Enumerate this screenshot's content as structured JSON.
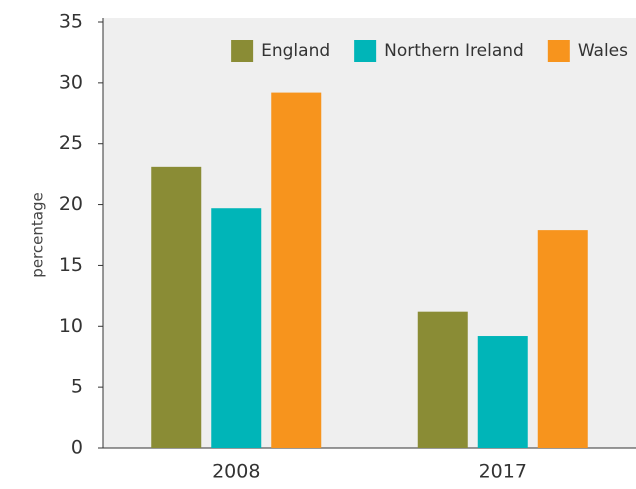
{
  "chart_data": {
    "type": "bar",
    "y_label": "percentage",
    "categories": [
      "2008",
      "2017"
    ],
    "series": [
      {
        "name": "England",
        "color": "#8a8c35",
        "values": [
          23.1,
          11.2
        ]
      },
      {
        "name": "Northern Ireland",
        "color": "#00b5b8",
        "values": [
          19.7,
          9.2
        ]
      },
      {
        "name": "Wales",
        "color": "#f7941d",
        "values": [
          29.2,
          17.9
        ]
      }
    ],
    "ylim": [
      0,
      35
    ],
    "yticks": [
      0,
      5,
      10,
      15,
      20,
      25,
      30,
      35
    ],
    "legend": "upper right",
    "background": "#efefef"
  }
}
